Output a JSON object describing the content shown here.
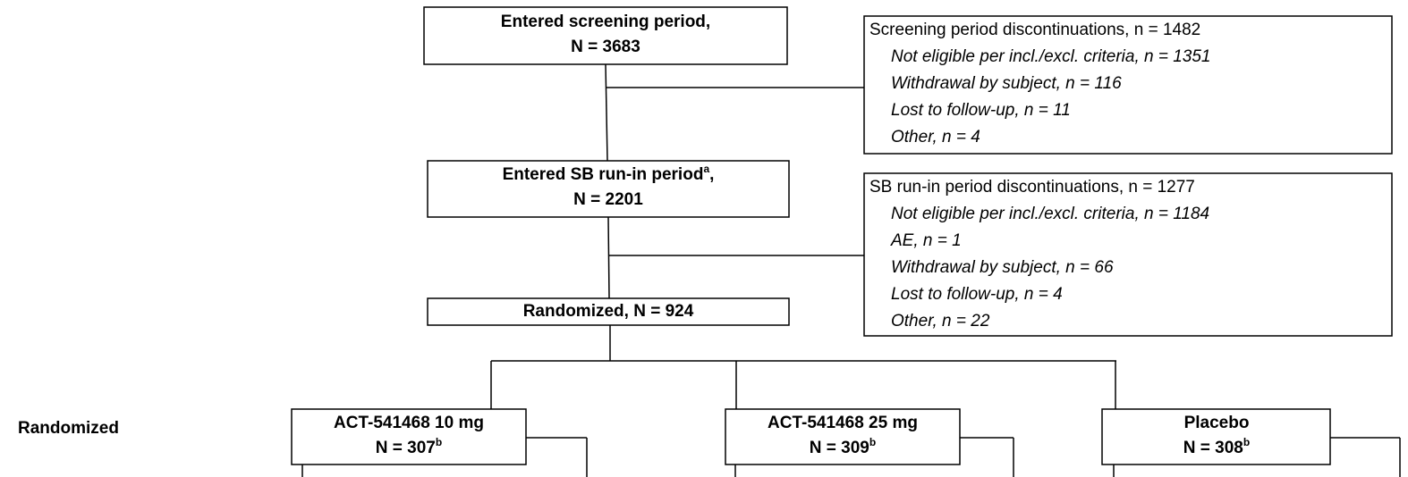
{
  "side_label": "Randomized",
  "boxes": [
    {
      "line1": "Entered screening period,",
      "line2": "N = 3683"
    },
    {
      "line1": "Entered SB run-in period",
      "line1_sup": "a",
      "line1_end": ",",
      "line2": "N = 2201"
    },
    {
      "line1": "Randomized, N = 924"
    },
    {
      "line1": "ACT-541468 10 mg",
      "line2": "N = 307",
      "line2_sup": "b"
    },
    {
      "line1": "ACT-541468 25 mg",
      "line2": "N = 309",
      "line2_sup": "b"
    },
    {
      "line1": "Placebo",
      "line2": "N = 308",
      "line2_sup": "b"
    }
  ],
  "discontinuations": [
    {
      "title": "Screening period discontinuations, n = 1482",
      "items": [
        "Not eligible per incl./excl. criteria, n = 1351",
        "Withdrawal by subject, n = 116",
        "Lost to follow-up, n = 11",
        "Other, n = 4"
      ]
    },
    {
      "title": "SB run-in period discontinuations, n = 1277",
      "items": [
        "Not eligible per incl./excl. criteria, n =  1184",
        "AE, n = 1",
        "Withdrawal by subject, n = 66",
        "Lost to follow-up, n = 4",
        "Other, n = 22"
      ]
    }
  ]
}
